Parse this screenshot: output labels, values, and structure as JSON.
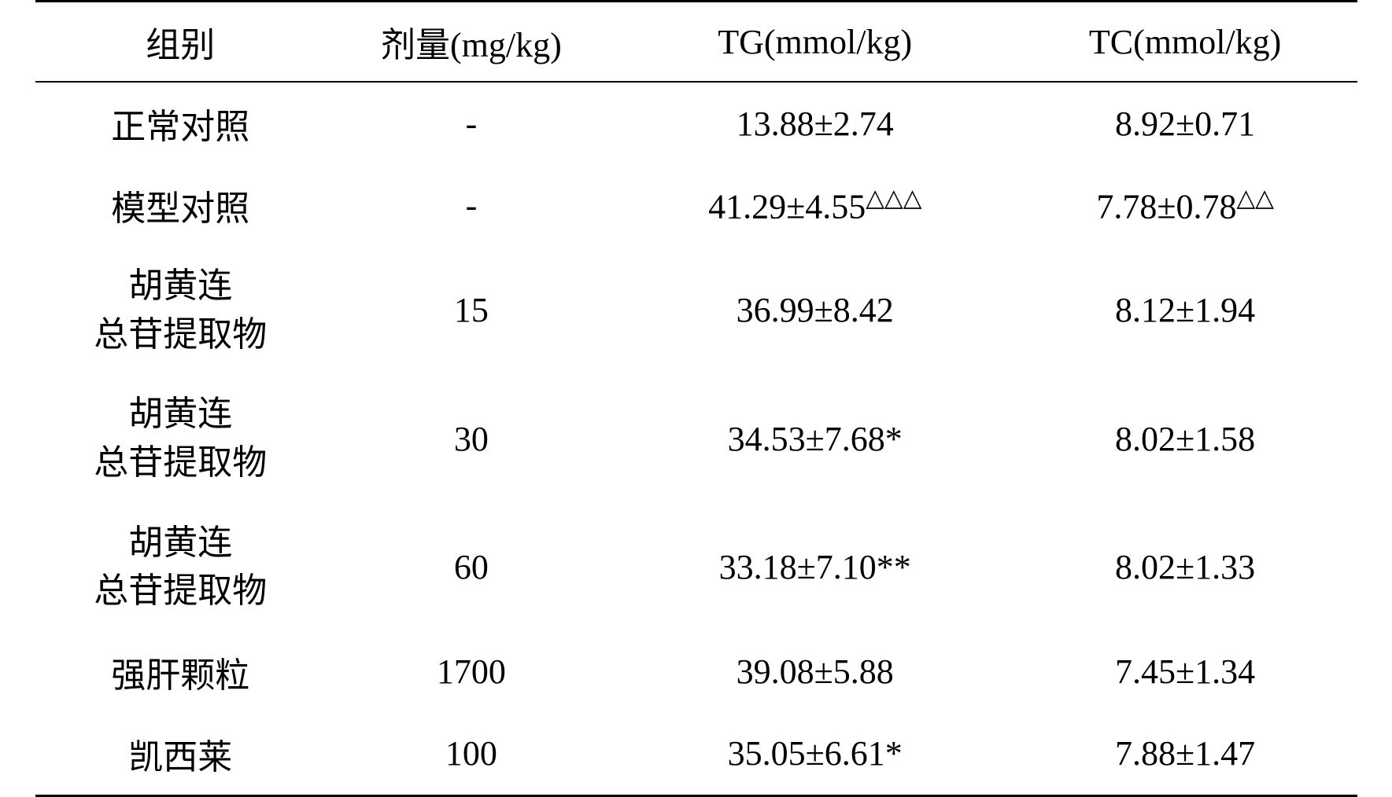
{
  "table": {
    "columns": [
      {
        "key": "group",
        "label": "组别",
        "class": "col-group"
      },
      {
        "key": "dose",
        "label": "剂量(mg/kg)",
        "class": "col-dose"
      },
      {
        "key": "tg",
        "label": "TG(mmol/kg)",
        "class": "col-tg"
      },
      {
        "key": "tc",
        "label": "TC(mmol/kg)",
        "class": "col-tc"
      }
    ],
    "rows": [
      {
        "group": "正常对照",
        "group_multiline": false,
        "dose": "-",
        "tg": "13.88±2.74",
        "tg_sup": "",
        "tc": "8.92±0.71",
        "tc_sup": ""
      },
      {
        "group": "模型对照",
        "group_multiline": false,
        "dose": "-",
        "tg": "41.29±4.55",
        "tg_sup": "△△△",
        "tc": "7.78±0.78",
        "tc_sup": "△△"
      },
      {
        "group_line1": "胡黄连",
        "group_line2": "总苷提取物",
        "group_multiline": true,
        "dose": "15",
        "tg": "36.99±8.42",
        "tg_sup": "",
        "tc": "8.12±1.94",
        "tc_sup": ""
      },
      {
        "group_line1": "胡黄连",
        "group_line2": "总苷提取物",
        "group_multiline": true,
        "dose": "30",
        "tg": "34.53±7.68*",
        "tg_sup": "",
        "tc": "8.02±1.58",
        "tc_sup": ""
      },
      {
        "group_line1": "胡黄连",
        "group_line2": "总苷提取物",
        "group_multiline": true,
        "dose": "60",
        "tg": "33.18±7.10**",
        "tg_sup": "",
        "tc": "8.02±1.33",
        "tc_sup": ""
      },
      {
        "group": "强肝颗粒",
        "group_multiline": false,
        "dose": "1700",
        "tg": "39.08±5.88",
        "tg_sup": "",
        "tc": "7.45±1.34",
        "tc_sup": ""
      },
      {
        "group": "凯西莱",
        "group_multiline": false,
        "dose": "100",
        "tg": "35.05±6.61*",
        "tg_sup": "",
        "tc": "7.88±1.47",
        "tc_sup": ""
      }
    ],
    "styling": {
      "border_color": "#000000",
      "top_border_width": 3,
      "header_border_width": 2,
      "bottom_border_width": 3,
      "background_color": "#ffffff",
      "text_color": "#000000",
      "font_family": "SimSun",
      "header_font_size": 44,
      "cell_font_size": 44,
      "superscript_scale": 0.7
    }
  }
}
